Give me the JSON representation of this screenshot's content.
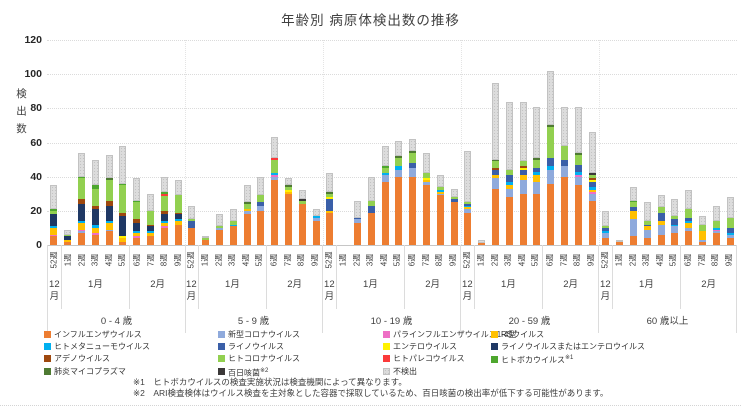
{
  "title": "年齢別 病原体検出数の推移",
  "footnotes": [
    "※1　ヒトボカウイルスの検査実施状況は検査機関によって異なります。",
    "※2　ARI検査検体はウイルス検査を主対象とした容器で採取しているため、百日咳菌の検出率が低下する可能性があります。"
  ],
  "series": [
    {
      "key": "influenza",
      "label": "インフルエンザウイルス",
      "color": "#ED7D31"
    },
    {
      "key": "covid",
      "label": "新型コロナウイルス",
      "color": "#8FAADC"
    },
    {
      "key": "para",
      "label": "パラインフルエンザウイルス1-4型",
      "color": "#EE6FC5"
    },
    {
      "key": "rsv",
      "label": "RSウイルス",
      "color": "#FFC000"
    },
    {
      "key": "hmpv",
      "label": "ヒトメタニューモウイルス",
      "color": "#00B0F0"
    },
    {
      "key": "rhino",
      "label": "ライノウイルス",
      "color": "#3A5FA8"
    },
    {
      "key": "entero",
      "label": "エンテロウイルス",
      "color": "#FFF200"
    },
    {
      "key": "rhino_entero",
      "label": "ライノウイルスまたはエンテロウイルス",
      "color": "#1F3864"
    },
    {
      "key": "adeno",
      "label": "アデノウイルス",
      "color": "#9E480E"
    },
    {
      "key": "hcov",
      "label": "ヒトコロナウイルス",
      "color": "#92D050"
    },
    {
      "key": "parecho",
      "label": "ヒトパレコウイルス",
      "color": "#FB3A3A"
    },
    {
      "key": "boca",
      "label": "ヒトボカウイルス",
      "sup": "※1",
      "color": "#4EA72E"
    },
    {
      "key": "myco",
      "label": "肺炎マイコプラズマ",
      "color": "#4E7A32"
    },
    {
      "key": "pertussis",
      "label": "百日咳菌",
      "sup": "※2",
      "color": "#3B3838"
    },
    {
      "key": "nd",
      "label": "不検出",
      "color": "#DCDCDC"
    }
  ],
  "legend_columns": [
    [
      "influenza",
      "hmpv",
      "adeno",
      "myco"
    ],
    [
      "covid",
      "rhino",
      "hcov",
      "pertussis"
    ],
    [
      "para",
      "entero",
      "parecho",
      "nd"
    ],
    [
      "rsv",
      "rhino_entero",
      "boca"
    ]
  ],
  "chart_data": {
    "type": "bar",
    "subtype": "stacked",
    "title": "年齢別 病原体検出数の推移",
    "ylabel": "検出数",
    "ylim": [
      0,
      120
    ],
    "yticks": [
      0,
      20,
      40,
      60,
      80,
      100,
      120
    ],
    "grid": "horizontal-dotted",
    "legend_position": "bottom",
    "weeks": [
      "52週",
      "1週",
      "2週",
      "3週",
      "4週",
      "5週",
      "6週",
      "7週",
      "8週",
      "9週"
    ],
    "months": [
      {
        "label": "12月",
        "weeks": 1
      },
      {
        "label": "1月",
        "weeks": 5
      },
      {
        "label": "2月",
        "weeks": 4
      }
    ],
    "groups": [
      {
        "label": "0 - 4 歳",
        "bars": [
          {
            "influenza": 5,
            "para": 1,
            "rsv": 4,
            "hmpv": 1,
            "rhino_entero": 7,
            "hcov": 2,
            "boca": 1,
            "nd": 14
          },
          {
            "influenza": 2,
            "rsv": 1,
            "rhino_entero": 2,
            "hcov": 1,
            "nd": 3
          },
          {
            "influenza": 7,
            "covid": 1,
            "para": 1,
            "rsv": 4,
            "hmpv": 1,
            "rhino_entero": 10,
            "adeno": 3,
            "hcov": 12,
            "boca": 1,
            "nd": 14
          },
          {
            "influenza": 6,
            "para": 1,
            "rsv": 3,
            "hmpv": 2,
            "rhino_entero": 9,
            "adeno": 2,
            "hcov": 10,
            "boca": 2,
            "nd": 15
          },
          {
            "influenza": 8,
            "covid": 1,
            "rsv": 4,
            "hmpv": 1,
            "rhino_entero": 9,
            "adeno": 3,
            "hcov": 12,
            "myco": 1,
            "nd": 14
          },
          {
            "influenza": 2,
            "rsv": 2,
            "entero": 1,
            "rhino_entero": 12,
            "adeno": 2,
            "hcov": 16,
            "boca": 1,
            "nd": 22
          },
          {
            "influenza": 4,
            "para": 1,
            "rsv": 2,
            "hmpv": 1,
            "rhino_entero": 5,
            "adeno": 2,
            "hcov": 10,
            "boca": 1,
            "nd": 13
          },
          {
            "influenza": 5,
            "rsv": 2,
            "hmpv": 1,
            "rhino_entero": 3,
            "adeno": 1,
            "hcov": 8,
            "nd": 10
          },
          {
            "influenza": 10,
            "para": 1,
            "rsv": 2,
            "hmpv": 1,
            "rhino_entero": 4,
            "adeno": 2,
            "hcov": 9,
            "parecho": 1,
            "boca": 1,
            "nd": 9
          },
          {
            "influenza": 12,
            "rsv": 2,
            "hmpv": 1,
            "rhino_entero": 3,
            "adeno": 1,
            "hcov": 10,
            "nd": 9
          }
        ]
      },
      {
        "label": "5 - 9 歳",
        "bars": [
          {
            "influenza": 10,
            "rhino": 4,
            "hcov": 1,
            "nd": 8
          },
          {
            "influenza": 3,
            "hcov": 1,
            "nd": 1
          },
          {
            "influenza": 9,
            "covid": 1,
            "hcov": 1,
            "nd": 7
          },
          {
            "influenza": 11,
            "hmpv": 1,
            "hcov": 2,
            "nd": 7
          },
          {
            "influenza": 18,
            "covid": 2,
            "rsv": 1,
            "hcov": 3,
            "myco": 1,
            "nd": 10
          },
          {
            "influenza": 20,
            "covid": 3,
            "rhino": 2,
            "hcov": 4,
            "nd": 11
          },
          {
            "influenza": 38,
            "covid": 2,
            "para": 1,
            "hmpv": 1,
            "parecho": 1,
            "hcov": 8,
            "nd": 12
          },
          {
            "influenza": 30,
            "rsv": 1,
            "entero": 1,
            "hcov": 2,
            "myco": 1,
            "nd": 4
          },
          {
            "influenza": 24,
            "hcov": 2,
            "pertussis": 1,
            "nd": 5
          },
          {
            "influenza": 14,
            "covid": 2,
            "hmpv": 1,
            "nd": 4
          }
        ]
      },
      {
        "label": "10 - 19 歳",
        "bars": [
          {
            "influenza": 19,
            "rsv": 1,
            "entero": 1,
            "rhino": 7,
            "hcov": 2,
            "myco": 1,
            "nd": 11
          },
          {},
          {
            "influenza": 13,
            "covid": 2,
            "rhino": 1,
            "nd": 10
          },
          {
            "influenza": 19,
            "rhino": 4,
            "hcov": 3,
            "nd": 14
          },
          {
            "influenza": 37,
            "covid": 4,
            "hmpv": 1,
            "hcov": 3,
            "boca": 1,
            "nd": 12
          },
          {
            "influenza": 40,
            "covid": 4,
            "hmpv": 2,
            "hcov": 5,
            "myco": 1,
            "nd": 9
          },
          {
            "influenza": 40,
            "covid": 5,
            "rhino": 3,
            "hcov": 6,
            "myco": 1,
            "nd": 7
          },
          {
            "influenza": 35,
            "covid": 2,
            "rsv": 1,
            "entero": 1,
            "hcov": 3,
            "nd": 12
          },
          {
            "influenza": 29,
            "covid": 1,
            "rsv": 1,
            "hmpv": 1,
            "hcov": 2,
            "nd": 7
          },
          {
            "influenza": 25,
            "rhino": 2,
            "hcov": 1,
            "nd": 5
          }
        ]
      },
      {
        "label": "20 - 59 歳",
        "bars": [
          {
            "influenza": 19,
            "covid": 2,
            "rsv": 1,
            "hmpv": 1,
            "rhino": 1,
            "hcov": 1,
            "nd": 30
          },
          {
            "influenza": 1,
            "nd": 2
          },
          {
            "influenza": 33,
            "covid": 6,
            "rsv": 2,
            "rhino": 3,
            "adeno": 1,
            "hcov": 4,
            "myco": 1,
            "nd": 45
          },
          {
            "influenza": 28,
            "covid": 5,
            "rsv": 2,
            "hmpv": 2,
            "rhino": 4,
            "hcov": 3,
            "nd": 40
          },
          {
            "influenza": 30,
            "covid": 8,
            "rsv": 3,
            "entero": 1,
            "rhino": 3,
            "adeno": 1,
            "hcov": 3,
            "nd": 35
          },
          {
            "influenza": 30,
            "covid": 7,
            "rsv": 4,
            "hmpv": 2,
            "rhino": 2,
            "hcov": 5,
            "myco": 1,
            "nd": 30
          },
          {
            "influenza": 36,
            "covid": 8,
            "hmpv": 2,
            "rhino": 5,
            "hcov": 18,
            "myco": 1,
            "nd": 32
          },
          {
            "influenza": 40,
            "covid": 6,
            "rhino": 4,
            "hcov": 8,
            "nd": 23
          },
          {
            "influenza": 35,
            "covid": 5,
            "para": 1,
            "hmpv": 2,
            "rhino": 4,
            "hcov": 6,
            "myco": 1,
            "nd": 27
          },
          {
            "influenza": 26,
            "covid": 4,
            "para": 1,
            "rsv": 1,
            "hmpv": 2,
            "entero": 1,
            "rhino": 3,
            "adeno": 1,
            "hcov": 2,
            "pertussis": 1,
            "nd": 24
          }
        ]
      },
      {
        "label": "60 歳以上",
        "bars": [
          {
            "influenza": 4,
            "covid": 3,
            "hmpv": 1,
            "rhino": 2,
            "hcov": 1,
            "nd": 9
          },
          {
            "influenza": 2,
            "nd": 1
          },
          {
            "influenza": 5,
            "covid": 10,
            "rsv": 5,
            "rhino": 2,
            "hcov": 3,
            "boca": 1,
            "nd": 8
          },
          {
            "influenza": 4,
            "covid": 5,
            "rsv": 2,
            "rhino": 1,
            "hcov": 2,
            "nd": 11
          },
          {
            "influenza": 6,
            "covid": 6,
            "rsv": 2,
            "rhino": 5,
            "hcov": 3,
            "nd": 7
          },
          {
            "influenza": 7,
            "covid": 4,
            "hmpv": 1,
            "rhino": 3,
            "hcov": 2,
            "nd": 10
          },
          {
            "influenza": 8,
            "covid": 2,
            "rsv": 3,
            "hmpv": 1,
            "rhino": 2,
            "hcov": 5,
            "nd": 11
          },
          {
            "influenza": 2,
            "covid": 1,
            "rsv": 5,
            "hcov": 4,
            "nd": 5
          },
          {
            "influenza": 7,
            "covid": 1,
            "para": 1,
            "hmpv": 1,
            "hcov": 4,
            "nd": 9
          },
          {
            "influenza": 4,
            "covid": 2,
            "hmpv": 1,
            "rhino": 3,
            "hcov": 6,
            "nd": 12
          }
        ]
      }
    ]
  }
}
